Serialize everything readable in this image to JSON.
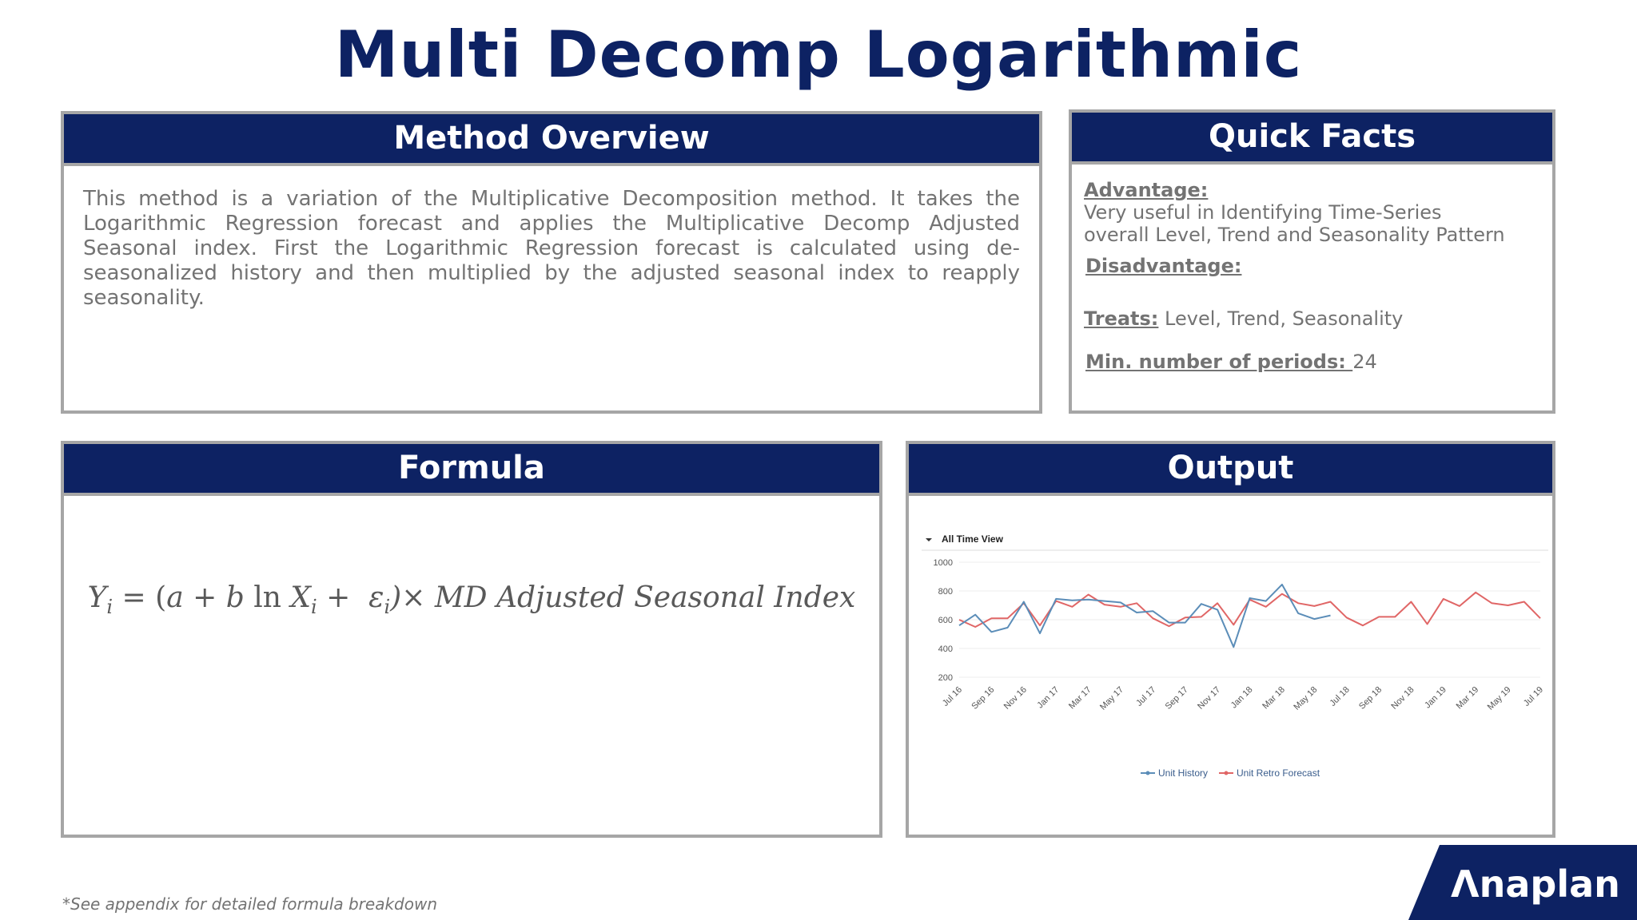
{
  "title": "Multi Decomp Logarithmic",
  "overview": {
    "header": "Method Overview",
    "text": "This method is a variation of the Multiplicative Decomposition method. It takes the Logarithmic Regression forecast and applies the Multiplicative Decomp Adjusted Seasonal index. First the Logarithmic Regression forecast is calculated using de-seasonalized history and then multiplied by the adjusted seasonal index to reapply seasonality."
  },
  "facts": {
    "header": "Quick Facts",
    "advantage_label": "Advantage:",
    "advantage_line1": "Very useful in Identifying Time-Series",
    "advantage_line2": "overall Level, Trend and Seasonality Pattern",
    "disadvantage_label": "Disadvantage:",
    "treats_label": "Treats:",
    "treats_value": "Level, Trend, Seasonality",
    "min_periods_label": "Min. number of periods: ",
    "min_periods_value": "24"
  },
  "formula": {
    "header": "Formula",
    "y": "Y",
    "i": "i",
    "eq": " = (",
    "a_plus_b": "a + b ",
    "ln": "ln",
    "x": " X",
    "plus": " +  ε",
    "close": ")× MD Adjusted Seasonal Index"
  },
  "output": {
    "header": "Output",
    "view_label": "All Time View",
    "chart_data": {
      "type": "line",
      "title": "",
      "ylim": [
        200,
        1000
      ],
      "yticks": [
        200,
        400,
        600,
        800,
        1000
      ],
      "x": [
        "Jul 16",
        "Aug 16",
        "Sep 16",
        "Oct 16",
        "Nov 16",
        "Dec 16",
        "Jan 17",
        "Feb 17",
        "Mar 17",
        "Apr 17",
        "May 17",
        "Jun 17",
        "Jul 17",
        "Aug 17",
        "Sep 17",
        "Oct 17",
        "Nov 17",
        "Dec 17",
        "Jan 18",
        "Feb 18",
        "Mar 18",
        "Apr 18",
        "May 18",
        "Jun 18",
        "Jul 18",
        "Aug 18",
        "Sep 18",
        "Oct 18",
        "Nov 18",
        "Dec 18",
        "Jan 19",
        "Feb 19",
        "Mar 19",
        "Apr 19",
        "May 19",
        "Jun 19",
        "Jul 19"
      ],
      "xtick_labels": [
        "Jul 16",
        "Sep 16",
        "Nov 16",
        "Jan 17",
        "Mar 17",
        "May 17",
        "Jul 17",
        "Sep 17",
        "Nov 17",
        "Jan 18",
        "Mar 18",
        "May 18",
        "Jul 18",
        "Sep 18",
        "Nov 18",
        "Jan 19",
        "Mar 19",
        "May 19",
        "Jul 19"
      ],
      "series": [
        {
          "name": "Unit History",
          "color": "#5b8db8",
          "values": [
            560,
            635,
            515,
            545,
            725,
            505,
            745,
            735,
            740,
            730,
            720,
            650,
            660,
            580,
            580,
            710,
            670,
            410,
            750,
            730,
            845,
            645,
            605,
            630,
            null,
            null,
            null,
            null,
            null,
            null,
            null,
            null,
            null,
            null,
            null,
            null,
            null
          ]
        },
        {
          "name": "Unit Retro Forecast",
          "color": "#e06666",
          "values": [
            600,
            550,
            610,
            610,
            715,
            560,
            730,
            690,
            775,
            705,
            690,
            715,
            610,
            555,
            615,
            620,
            715,
            565,
            740,
            690,
            780,
            715,
            695,
            725,
            615,
            560,
            620,
            620,
            725,
            570,
            745,
            695,
            790,
            715,
            700,
            725,
            610
          ]
        }
      ],
      "legend_position": "bottom",
      "grid": true
    }
  },
  "footnote": "*See appendix for detailed formula breakdown",
  "logo": {
    "text": "Λnaplan",
    "color": "#0d2263"
  }
}
